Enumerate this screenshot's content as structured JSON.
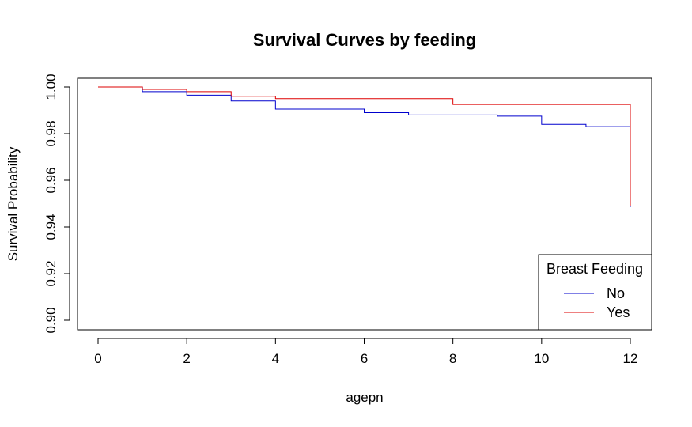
{
  "chart_data": {
    "type": "line",
    "step": true,
    "title": "Survival Curves by feeding",
    "xlabel": "agepn",
    "ylabel": "Survival Probability",
    "xlim": [
      0,
      12
    ],
    "ylim": [
      0.9,
      1.0
    ],
    "xticks": [
      0,
      2,
      4,
      6,
      8,
      10,
      12
    ],
    "yticks": [
      0.9,
      0.92,
      0.94,
      0.96,
      0.98,
      1.0
    ],
    "xtick_labels": [
      "0",
      "2",
      "4",
      "6",
      "8",
      "10",
      "12"
    ],
    "ytick_labels": [
      "0.90",
      "0.92",
      "0.94",
      "0.96",
      "0.98",
      "1.00"
    ],
    "grid": false,
    "legend": {
      "title": "Breast Feeding",
      "position": "bottom-right"
    },
    "series": [
      {
        "name": "No",
        "color": "#0000CD",
        "x": [
          0,
          1,
          2,
          3,
          4,
          6,
          7,
          9,
          10,
          11,
          12,
          12
        ],
        "y": [
          1.0,
          0.998,
          0.9965,
          0.994,
          0.9905,
          0.989,
          0.988,
          0.9875,
          0.984,
          0.983,
          0.983,
          0.9485
        ]
      },
      {
        "name": "Yes",
        "color": "#DD0000",
        "x": [
          0,
          1,
          2,
          3,
          4,
          8,
          12,
          12
        ],
        "y": [
          1.0,
          0.999,
          0.998,
          0.996,
          0.995,
          0.9925,
          0.9925,
          0.949
        ]
      }
    ]
  }
}
